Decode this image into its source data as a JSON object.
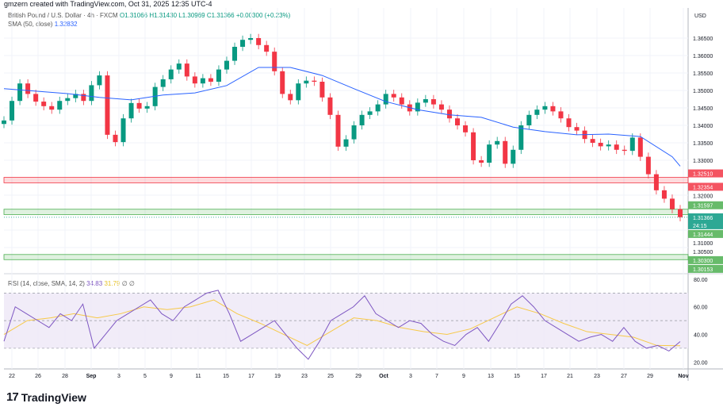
{
  "credit": "gmzern created with TradingView.com, Oct 31, 2025 12:35 UTC-4",
  "header": {
    "symbol": "British Pound / U.S. Dollar · 4h · FXCM",
    "open": "O1.31066",
    "high": "H1.31430",
    "low": "L1.30969",
    "close": "C1.31366",
    "change": "+0.00300 (+0.23%)"
  },
  "sma_legend": {
    "label": "SMA (50, close)",
    "value": "1.32832"
  },
  "rsi_legend": {
    "label": "RSI (14, close, SMA, 14, 2)",
    "rsi": "34.83",
    "ma": "31.79",
    "extra1": "∅",
    "extra2": "∅"
  },
  "currency": "USD",
  "countdown": "24:15",
  "footer": {
    "logo": "TradingView"
  },
  "colors": {
    "up": "#089981",
    "down": "#f23645",
    "sma": "#2962ff",
    "rsi": "#7e57c2",
    "rsi_ma": "#f7c948",
    "resistance": "#f23645",
    "support": "#4caf50",
    "rsi_band": "#ede7f6"
  },
  "chart_data": [
    {
      "type": "candlestick",
      "title": "British Pound / U.S. Dollar · 4h · FXCM",
      "ylim": [
        1.3035,
        1.3684
      ],
      "yticks": [
        "1.36500",
        "1.36000",
        "1.35500",
        "1.35000",
        "1.34500",
        "1.34000",
        "1.33500",
        "1.33000",
        "1.32000",
        "1.31000",
        "1.30500"
      ],
      "ytick_values": [
        1.365,
        1.36,
        1.355,
        1.35,
        1.345,
        1.34,
        1.335,
        1.33,
        1.32,
        1.31,
        1.305
      ],
      "xticks": [
        "22",
        "26",
        "28",
        "Sep",
        "3",
        "5",
        "9",
        "11",
        "15",
        "17",
        "19",
        "23",
        "25",
        "29",
        "Oct",
        "3",
        "7",
        "9",
        "13",
        "15",
        "17",
        "21",
        "23",
        "27",
        "29",
        "Nov"
      ],
      "closes": [
        1.3414,
        1.347,
        1.352,
        1.349,
        1.3468,
        1.3455,
        1.3445,
        1.347,
        1.3478,
        1.349,
        1.347,
        1.3515,
        1.3543,
        1.3373,
        1.3352,
        1.342,
        1.3464,
        1.3448,
        1.3455,
        1.351,
        1.3532,
        1.356,
        1.3577,
        1.354,
        1.352,
        1.3535,
        1.3525,
        1.356,
        1.3585,
        1.3625,
        1.3645,
        1.365,
        1.363,
        1.3611,
        1.3555,
        1.349,
        1.3472,
        1.352,
        1.3528,
        1.3525,
        1.348,
        1.343,
        1.3339,
        1.336,
        1.34,
        1.343,
        1.344,
        1.346,
        1.349,
        1.348,
        1.346,
        1.344,
        1.3465,
        1.3475,
        1.346,
        1.3445,
        1.342,
        1.34,
        1.338,
        1.33,
        1.3293,
        1.3345,
        1.3355,
        1.329,
        1.333,
        1.34,
        1.343,
        1.3445,
        1.3455,
        1.344,
        1.342,
        1.3395,
        1.3385,
        1.3361,
        1.335,
        1.334,
        1.3345,
        1.333,
        1.3327,
        1.3365,
        1.331,
        1.326,
        1.3214,
        1.319,
        1.316,
        1.3137
      ],
      "sma": [
        1.3505,
        1.3498,
        1.3491,
        1.348,
        1.3473,
        1.3487,
        1.3493,
        1.3514,
        1.3566,
        1.3566,
        1.3543,
        1.3505,
        1.3468,
        1.3445,
        1.343,
        1.3423,
        1.3395,
        1.3382,
        1.3373,
        1.3375,
        1.3368,
        1.331,
        1.3283
      ],
      "zones": [
        {
          "top": 1.3251,
          "bottom": 1.32354,
          "top_label": "1.32510",
          "bottom_label": "1.32354",
          "kind": "resistance"
        },
        {
          "top": 1.31597,
          "bottom": 1.31444,
          "top_label": "1.31597",
          "bottom_label": "1.31444",
          "kind": "support"
        },
        {
          "top": 1.303,
          "bottom": 1.30153,
          "top_label": "1.30300",
          "bottom_label": "1.30153",
          "kind": "support"
        }
      ],
      "last_price": 1.31366,
      "last_label": "1.31366"
    },
    {
      "type": "line",
      "title": "RSI (14, close, SMA, 14, 2)",
      "ylim": [
        15,
        84
      ],
      "yticks": [
        "80.00",
        "60.00",
        "40.00",
        "20.00"
      ],
      "ytick_values": [
        80,
        60,
        40,
        20
      ],
      "bands": [
        70,
        50,
        30
      ],
      "rsi": [
        35,
        60,
        55,
        50,
        45,
        55,
        50,
        62,
        30,
        40,
        50,
        55,
        60,
        65,
        55,
        50,
        60,
        65,
        70,
        72,
        55,
        35,
        40,
        45,
        50,
        40,
        30,
        22,
        35,
        50,
        55,
        60,
        68,
        55,
        50,
        45,
        50,
        48,
        40,
        35,
        32,
        40,
        45,
        35,
        48,
        62,
        68,
        60,
        50,
        45,
        40,
        35,
        38,
        40,
        35,
        45,
        35,
        30,
        32,
        28,
        34.83
      ],
      "rsi_ma": [
        40,
        50,
        52,
        55,
        52,
        55,
        60,
        58,
        60,
        65,
        55,
        48,
        40,
        32,
        42,
        52,
        50,
        45,
        42,
        40,
        44,
        52,
        60,
        55,
        48,
        42,
        40,
        38,
        32,
        31.79
      ]
    }
  ]
}
